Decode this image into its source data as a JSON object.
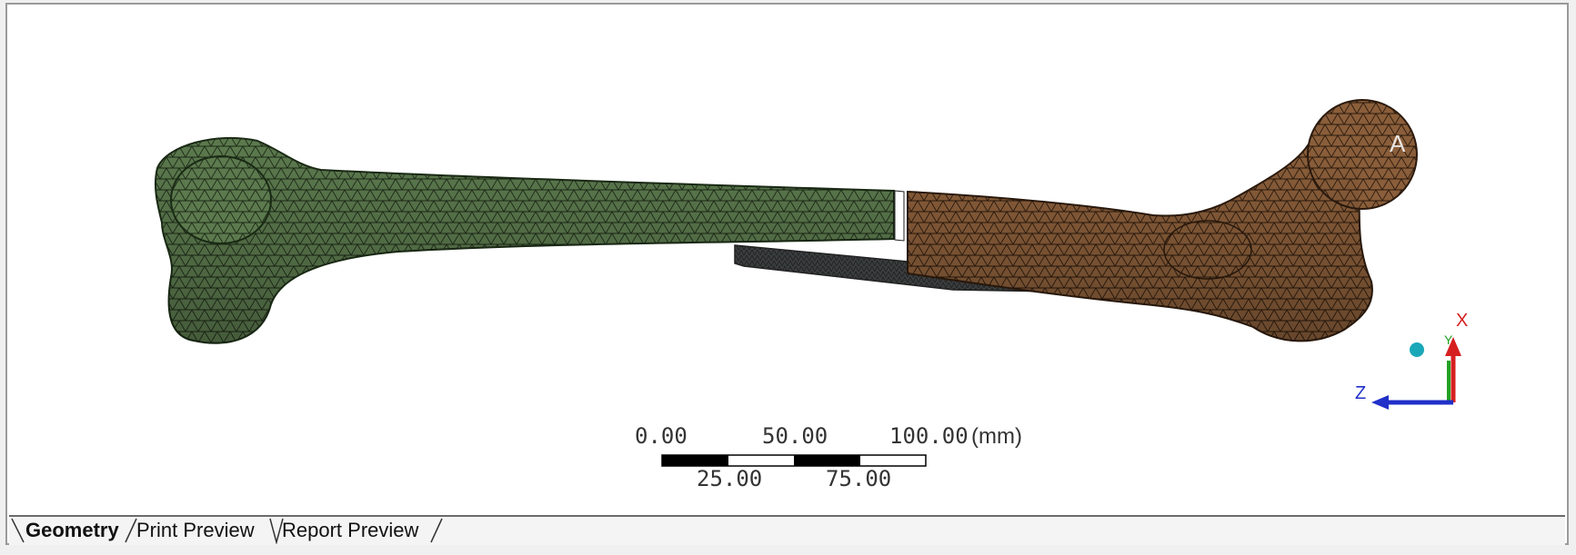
{
  "viewport": {
    "scale_bar": {
      "top_labels": [
        "0.00",
        "50.00",
        "100.00"
      ],
      "bottom_labels": [
        "25.00",
        "75.00"
      ],
      "unit": "(mm)"
    },
    "triad": {
      "x_label": "X",
      "y_label": "Y",
      "z_label": "Z"
    },
    "watermark_fragment": "A"
  },
  "tabs": [
    {
      "label": "Geometry",
      "active": true
    },
    {
      "label": "Print Preview",
      "active": false
    },
    {
      "label": "Report Preview",
      "active": false
    }
  ],
  "colors": {
    "distal_fragment": "#5c7a4e",
    "proximal_fragment": "#8a5e3a",
    "plate": "#3a3a3a",
    "axis_x": "#d62020",
    "axis_y": "#22a022",
    "axis_z": "#2030c8"
  }
}
